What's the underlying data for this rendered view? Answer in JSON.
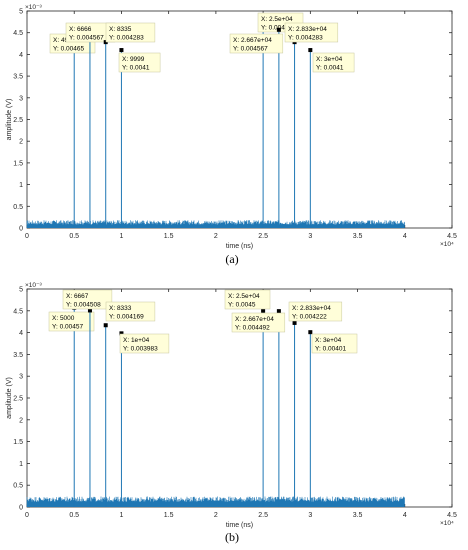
{
  "chart_data": [
    {
      "panel_label": "(a)",
      "type": "line",
      "title": "",
      "xlabel": "time (ns)",
      "ylabel": "amplitude (V)",
      "x_exponent_label": "×10⁴",
      "y_exponent_label": "×10⁻³",
      "xlim": [
        0,
        45000
      ],
      "ylim": [
        0,
        0.005
      ],
      "xticks": [
        0,
        5000,
        10000,
        15000,
        20000,
        25000,
        30000,
        35000,
        40000,
        45000
      ],
      "xtick_labels": [
        "0",
        "0.5",
        "1",
        "1.5",
        "2",
        "2.5",
        "3",
        "3.5",
        "4",
        "4.5"
      ],
      "yticks": [
        0,
        0.0005,
        0.001,
        0.0015,
        0.002,
        0.0025,
        0.003,
        0.0035,
        0.004,
        0.0045,
        0.005
      ],
      "ytick_labels": [
        "0",
        "0.5",
        "1",
        "1.5",
        "2",
        "2.5",
        "3",
        "3.5",
        "4",
        "4.5",
        "5"
      ],
      "grid": false,
      "series_color": "#1f77b4",
      "noise_floor": {
        "x_range": [
          0,
          40000
        ],
        "level_range": [
          8e-05,
          0.00018
        ]
      },
      "peaks": [
        {
          "x": 4999,
          "y": 0.00465,
          "x_label": "X: 4999",
          "y_label": "Y: 0.00465"
        },
        {
          "x": 6666,
          "y": 0.004567,
          "x_label": "X: 6666",
          "y_label": "Y: 0.004567"
        },
        {
          "x": 8335,
          "y": 0.004283,
          "x_label": "X: 8335",
          "y_label": "Y: 0.004283"
        },
        {
          "x": 9999,
          "y": 0.0041,
          "x_label": "X: 9999",
          "y_label": "Y: 0.0041"
        },
        {
          "x": 25000,
          "y": 0.00465,
          "x_label": "X: 2.5e+04",
          "y_label": "Y: 0.00465"
        },
        {
          "x": 26670,
          "y": 0.004567,
          "x_label": "X: 2.667e+04",
          "y_label": "Y: 0.004567"
        },
        {
          "x": 28330,
          "y": 0.004283,
          "x_label": "X: 2.833e+04",
          "y_label": "Y: 0.004283"
        },
        {
          "x": 30000,
          "y": 0.0041,
          "x_label": "X: 3e+04",
          "y_label": "Y: 0.0041"
        }
      ]
    },
    {
      "panel_label": "(b)",
      "type": "line",
      "title": "",
      "xlabel": "time (ns)",
      "ylabel": "amplitude (V)",
      "x_exponent_label": "×10⁴",
      "y_exponent_label": "×10⁻³",
      "xlim": [
        0,
        45000
      ],
      "ylim": [
        0,
        0.005
      ],
      "xticks": [
        0,
        5000,
        10000,
        15000,
        20000,
        25000,
        30000,
        35000,
        40000,
        45000
      ],
      "xtick_labels": [
        "0",
        "0.5",
        "1",
        "1.5",
        "2",
        "2.5",
        "3",
        "3.5",
        "4",
        "4.5"
      ],
      "yticks": [
        0,
        0.0005,
        0.001,
        0.0015,
        0.002,
        0.0025,
        0.003,
        0.0035,
        0.004,
        0.0045,
        0.005
      ],
      "ytick_labels": [
        "0",
        "0.5",
        "1",
        "1.5",
        "2",
        "2.5",
        "3",
        "3.5",
        "4",
        "4.5",
        "5"
      ],
      "grid": false,
      "series_color": "#1f77b4",
      "noise_floor": {
        "x_range": [
          0,
          40000
        ],
        "level_range": [
          0.00012,
          0.00024
        ]
      },
      "peaks": [
        {
          "x": 5000,
          "y": 0.00457,
          "x_label": "X: 5000",
          "y_label": "Y: 0.00457"
        },
        {
          "x": 6667,
          "y": 0.004508,
          "x_label": "X: 6667",
          "y_label": "Y: 0.004508"
        },
        {
          "x": 8333,
          "y": 0.004169,
          "x_label": "X: 8333",
          "y_label": "Y: 0.004169"
        },
        {
          "x": 10000,
          "y": 0.003983,
          "x_label": "X: 1e+04",
          "y_label": "Y: 0.003983"
        },
        {
          "x": 25000,
          "y": 0.0045,
          "x_label": "X: 2.5e+04",
          "y_label": "Y: 0.0045"
        },
        {
          "x": 26670,
          "y": 0.004492,
          "x_label": "X: 2.667e+04",
          "y_label": "Y: 0.004492"
        },
        {
          "x": 28330,
          "y": 0.004222,
          "x_label": "X: 2.833e+04",
          "y_label": "Y: 0.004222"
        },
        {
          "x": 30000,
          "y": 0.00401,
          "x_label": "X: 3e+04",
          "y_label": "Y: 0.00401"
        }
      ]
    }
  ]
}
